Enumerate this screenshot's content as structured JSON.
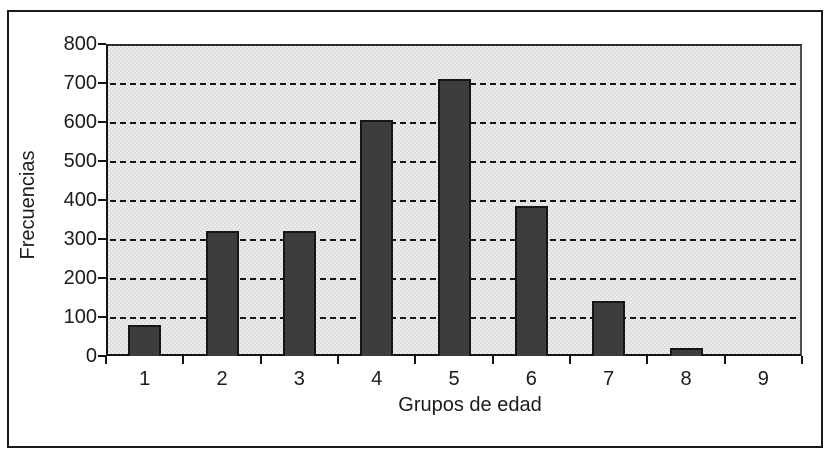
{
  "figure": {
    "background": "#ffffff",
    "frame_border_color": "#1a1a1a"
  },
  "chart_data": {
    "type": "bar",
    "title": "",
    "categories": [
      "1",
      "2",
      "3",
      "4",
      "5",
      "6",
      "7",
      "8",
      "9"
    ],
    "values": [
      80,
      320,
      320,
      605,
      710,
      385,
      140,
      20,
      0
    ],
    "xlabel": "Grupos de edad",
    "ylabel": "Frecuencias",
    "ylim": [
      0,
      800
    ],
    "yticks": [
      0,
      100,
      200,
      300,
      400,
      500,
      600,
      700,
      800
    ],
    "grid": "horizontal-dashed",
    "legend": "none",
    "bar_color": "#3d3d3f",
    "bar_border_color": "#161616",
    "plot_background": "#e2e2e2",
    "gridline_color": "#151515"
  }
}
